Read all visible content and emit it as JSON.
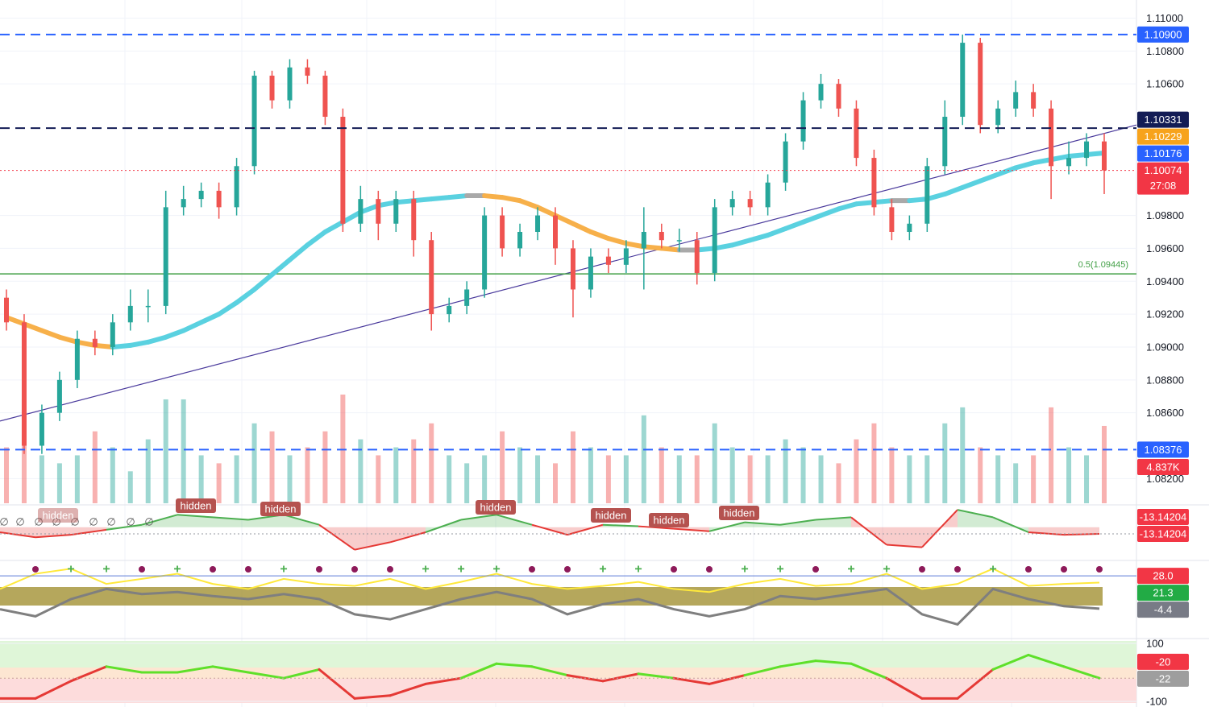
{
  "chart_data": [
    {
      "type": "candlestick",
      "up_color": "#26a69a",
      "down_color": "#ef5350",
      "open": [
        1.093,
        1.0915,
        1.084,
        1.086,
        1.088,
        1.0905,
        1.09,
        1.0915,
        1.0925,
        1.0925,
        1.0985,
        1.099,
        1.0995,
        1.0985,
        1.101,
        1.1065,
        1.105,
        1.107,
        1.1065,
        1.104,
        1.0975,
        1.099,
        1.0975,
        1.099,
        1.0965,
        1.092,
        1.0925,
        1.0935,
        1.098,
        1.096,
        1.097,
        1.098,
        1.096,
        1.0935,
        1.0955,
        1.095,
        1.096,
        1.097,
        1.0965,
        1.0965,
        1.0945,
        1.0985,
        1.099,
        1.0985,
        1.1,
        1.1025,
        1.105,
        1.106,
        1.1045,
        1.1015,
        1.0985,
        1.097,
        1.0975,
        1.101,
        1.104,
        1.1085,
        1.1035,
        1.1045,
        1.1055,
        1.1045,
        1.101,
        1.1015,
        1.1025
      ],
      "high": [
        1.0935,
        1.092,
        1.0865,
        1.0885,
        1.091,
        1.091,
        1.092,
        1.0935,
        1.0935,
        1.0995,
        1.0998,
        1.1,
        1.1,
        1.1015,
        1.1068,
        1.1068,
        1.1075,
        1.1075,
        1.1068,
        1.1045,
        1.0998,
        1.0995,
        1.0995,
        1.0995,
        1.097,
        1.093,
        1.094,
        1.0985,
        1.0985,
        1.0975,
        1.0985,
        1.0985,
        1.0965,
        1.096,
        1.096,
        1.0965,
        1.0985,
        1.0975,
        1.0972,
        1.097,
        1.099,
        1.0995,
        1.0995,
        1.1005,
        1.103,
        1.1055,
        1.1066,
        1.1063,
        1.105,
        1.102,
        1.099,
        1.098,
        1.1015,
        1.105,
        1.109,
        1.1088,
        1.105,
        1.1062,
        1.106,
        1.105,
        1.1025,
        1.103,
        1.103
      ],
      "low": [
        1.091,
        1.0835,
        1.0835,
        1.0855,
        1.0875,
        1.0895,
        1.0895,
        1.091,
        1.0915,
        1.092,
        1.098,
        1.0985,
        1.0978,
        1.098,
        1.1005,
        1.1045,
        1.1045,
        1.106,
        1.1035,
        1.097,
        1.097,
        1.0965,
        1.097,
        1.0955,
        1.091,
        1.0915,
        1.092,
        1.093,
        1.0955,
        1.0955,
        1.0965,
        1.095,
        1.0918,
        1.093,
        1.0945,
        1.0945,
        1.0935,
        1.096,
        1.0958,
        1.0938,
        1.094,
        1.098,
        1.098,
        1.098,
        1.0995,
        1.102,
        1.1045,
        1.104,
        1.101,
        1.098,
        1.0965,
        1.0965,
        1.097,
        1.1005,
        1.1035,
        1.103,
        1.103,
        1.104,
        1.104,
        1.099,
        1.1005,
        1.101,
        1.0993
      ],
      "close": [
        1.0915,
        1.084,
        1.086,
        1.088,
        1.0905,
        1.09,
        1.0915,
        1.0925,
        1.0925,
        1.0985,
        1.099,
        1.0995,
        1.0985,
        1.101,
        1.1065,
        1.105,
        1.107,
        1.1065,
        1.104,
        1.0975,
        1.099,
        1.0975,
        1.099,
        1.0965,
        1.092,
        1.0925,
        1.0935,
        1.098,
        1.096,
        1.097,
        1.098,
        1.096,
        1.0935,
        1.0955,
        1.095,
        1.096,
        1.097,
        1.0965,
        1.0965,
        1.0945,
        1.0985,
        1.099,
        1.0985,
        1.1,
        1.1025,
        1.105,
        1.106,
        1.1045,
        1.1015,
        1.0985,
        1.097,
        1.0975,
        1.101,
        1.104,
        1.1085,
        1.1035,
        1.1045,
        1.1055,
        1.1045,
        1.101,
        1.1015,
        1.1025,
        1.10074
      ],
      "volume": {
        "values": [
          3.5,
          6.5,
          3,
          2.5,
          3,
          4.5,
          3.5,
          2,
          4,
          6.5,
          6.5,
          3,
          2.5,
          3,
          5,
          4.5,
          3,
          3.5,
          4.5,
          6.8,
          4,
          3,
          3.5,
          4,
          5,
          3,
          2.5,
          3,
          4.5,
          3.5,
          3,
          2.5,
          4.5,
          3.5,
          3,
          3,
          5.5,
          3.5,
          3,
          3,
          5,
          3.5,
          3,
          3,
          4,
          3.5,
          3,
          2.5,
          4,
          5,
          3.5,
          3,
          3,
          5,
          6,
          3.5,
          3,
          2.5,
          3,
          6,
          3.5,
          3,
          4.837
        ],
        "badge": "4.837K",
        "badge_color": "#f23645"
      },
      "ma": {
        "values": [
          1.0918,
          1.0914,
          1.091,
          1.0906,
          1.0903,
          1.0901,
          1.09,
          1.0901,
          1.0903,
          1.0906,
          1.091,
          1.0915,
          1.092,
          1.0927,
          1.0935,
          1.0944,
          1.0953,
          1.0962,
          1.097,
          1.0976,
          1.0982,
          1.0986,
          1.0988,
          1.0989,
          1.099,
          1.0991,
          1.0992,
          1.0992,
          1.0991,
          1.0989,
          1.0985,
          1.098,
          1.0975,
          1.097,
          1.0966,
          1.0963,
          1.0961,
          1.096,
          1.0959,
          1.0959,
          1.096,
          1.0962,
          1.0965,
          1.0968,
          1.0972,
          1.0976,
          1.098,
          1.0984,
          1.0987,
          1.0988,
          1.0989,
          1.0989,
          1.099,
          1.0993,
          1.0997,
          1.1001,
          1.1005,
          1.1009,
          1.1012,
          1.1014,
          1.1016,
          1.1017,
          1.1018
        ],
        "up_color": "#5ad1e0",
        "down_color": "#f7b04a",
        "flat_color": "#a9a9a9"
      },
      "trendline": {
        "values": [
          1.0855,
          1.1035
        ],
        "color": "#4a3a9c"
      },
      "fib": {
        "value": 1.09445,
        "label": "0.5(1.09445)",
        "color": "#43a047"
      },
      "badges": [
        {
          "value": 1.109,
          "label": "1.10900",
          "color": "#2962ff",
          "line": "dashed"
        },
        {
          "value": 1.10331,
          "label": "1.10331",
          "color": "#131c55",
          "line": "dashed"
        },
        {
          "value": 1.10229,
          "label": "1.10229",
          "color": "#f7a31c"
        },
        {
          "value": 1.10176,
          "label": "1.10176",
          "color": "#2962ff"
        },
        {
          "value": 1.10074,
          "label": "1.10074",
          "color": "#f23645",
          "line": "dotted",
          "sub": "27:08"
        },
        {
          "value": 1.08376,
          "label": "1.08376",
          "color": "#2962ff",
          "line": "dashed"
        }
      ],
      "ylim": [
        1.0805,
        1.1111
      ],
      "yticks": [
        {
          "value": 1.11,
          "label": "1.11000"
        },
        {
          "value": 1.108,
          "label": "1.10800"
        },
        {
          "value": 1.106,
          "label": "1.10600"
        },
        {
          "value": 1.098,
          "label": "1.09800"
        },
        {
          "value": 1.096,
          "label": "1.09600"
        },
        {
          "value": 1.094,
          "label": "1.09400"
        },
        {
          "value": 1.092,
          "label": "1.09200"
        },
        {
          "value": 1.09,
          "label": "1.09000"
        },
        {
          "value": 1.088,
          "label": "1.08800"
        },
        {
          "value": 1.086,
          "label": "1.08600"
        },
        {
          "value": 1.082,
          "label": "1.08200"
        }
      ]
    },
    {
      "type": "area",
      "values": [
        -10,
        -20,
        -15,
        -5,
        5,
        25,
        20,
        15,
        25,
        5,
        -45,
        -30,
        -10,
        15,
        25,
        5,
        -15,
        5,
        2,
        -3,
        -8,
        10,
        5,
        15,
        20,
        -35,
        -40,
        35,
        20,
        -10,
        -15,
        -13.14204
      ],
      "up_color": "#4caf50",
      "down_color": "#e53935",
      "ylim": [
        -60,
        40
      ],
      "annotations": [
        "hidden",
        "hidden",
        "hidden",
        "hidden",
        "hidden",
        "hidden",
        "hidden"
      ],
      "symbols": [
        "∅",
        "∅",
        "∅",
        "∅",
        "∅",
        "∅",
        "∅",
        "∅",
        "∅"
      ],
      "badges": [
        {
          "value": -13.14204,
          "label": "-13.14204",
          "color": "#f23645"
        },
        {
          "value": -13.14204,
          "label": "-13.14204",
          "color": "#f23645"
        }
      ]
    },
    {
      "type": "line",
      "series": [
        {
          "color": "#ffe93b",
          "values": [
            15,
            30,
            35,
            20,
            25,
            30,
            20,
            15,
            25,
            20,
            18,
            25,
            15,
            22,
            30,
            20,
            15,
            18,
            22,
            15,
            12,
            20,
            25,
            18,
            20,
            30,
            15,
            20,
            35,
            18,
            20,
            21.3
          ]
        },
        {
          "color": "#7f7f7f",
          "values": [
            -5,
            -12,
            5,
            15,
            10,
            12,
            8,
            5,
            10,
            5,
            -10,
            -15,
            -5,
            5,
            12,
            5,
            -10,
            0,
            5,
            -5,
            -12,
            -5,
            8,
            5,
            10,
            15,
            -10,
            -20,
            15,
            5,
            -2,
            -4.4
          ]
        }
      ],
      "ylim": [
        -30,
        40
      ],
      "badges": [
        {
          "value": 28,
          "label": "28.0",
          "color": "#f23645",
          "line": "solid",
          "line_color": "#5b7bd6"
        },
        {
          "value": 21.3,
          "label": "21.3",
          "color": "#22ab45"
        },
        {
          "value": -4.4,
          "label": "-4.4",
          "color": "#787b86"
        }
      ]
    },
    {
      "type": "line",
      "values": [
        -90,
        -90,
        -30,
        20,
        0,
        0,
        20,
        0,
        -20,
        10,
        -90,
        -80,
        -40,
        -20,
        30,
        20,
        -10,
        -30,
        -5,
        -20,
        -40,
        -10,
        20,
        40,
        30,
        -20,
        -90,
        -90,
        10,
        60,
        20,
        -20
      ],
      "color": "#5ee02a",
      "down_color": "#e53935",
      "ylim": [
        -100,
        100
      ],
      "yticks": [
        100,
        -100
      ],
      "badges": [
        {
          "value": -20,
          "label": "-20",
          "color": "#f23645",
          "line": "dotted",
          "line_color": "#c9a0a0"
        },
        {
          "value": -22,
          "label": "-22",
          "color": "#9e9e9e"
        }
      ]
    }
  ]
}
